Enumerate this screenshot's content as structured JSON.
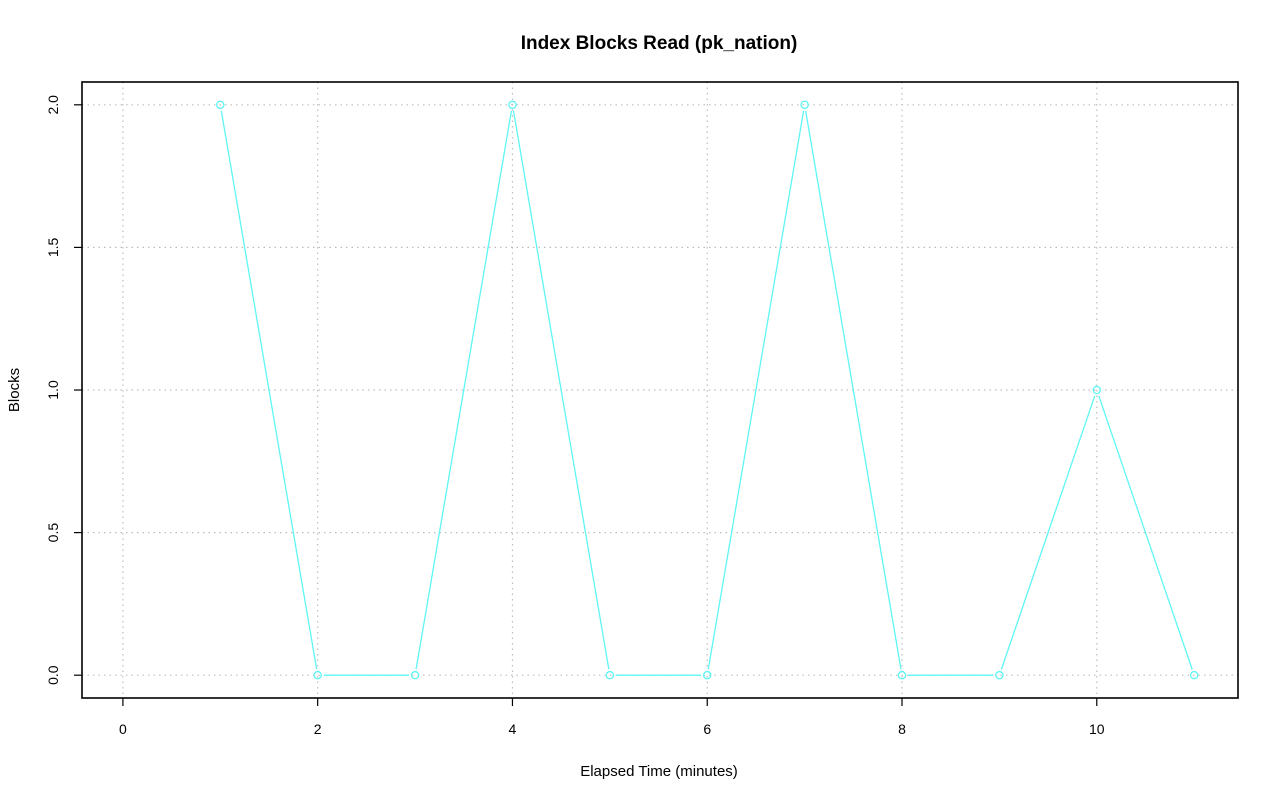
{
  "chart_data": {
    "type": "line",
    "title": "Index Blocks Read (pk_nation)",
    "xlabel": "Elapsed Time (minutes)",
    "ylabel": "Blocks",
    "xlim": [
      -0.42,
      11.45
    ],
    "ylim": [
      -0.08,
      2.08
    ],
    "x_ticks": [
      0,
      2,
      4,
      6,
      8,
      10
    ],
    "x_tick_labels": [
      "0",
      "2",
      "4",
      "6",
      "8",
      "10"
    ],
    "y_ticks": [
      0.0,
      0.5,
      1.0,
      1.5,
      2.0
    ],
    "y_tick_labels": [
      "0.0",
      "0.5",
      "1.0",
      "1.5",
      "2.0"
    ],
    "grid": true,
    "series": [
      {
        "color": "#5ff5f5",
        "x": [
          1,
          2,
          3,
          4,
          5,
          6,
          7,
          8,
          9,
          10,
          11
        ],
        "values": [
          2,
          0,
          0,
          2,
          0,
          0,
          2,
          0,
          0,
          1,
          0
        ]
      }
    ]
  }
}
